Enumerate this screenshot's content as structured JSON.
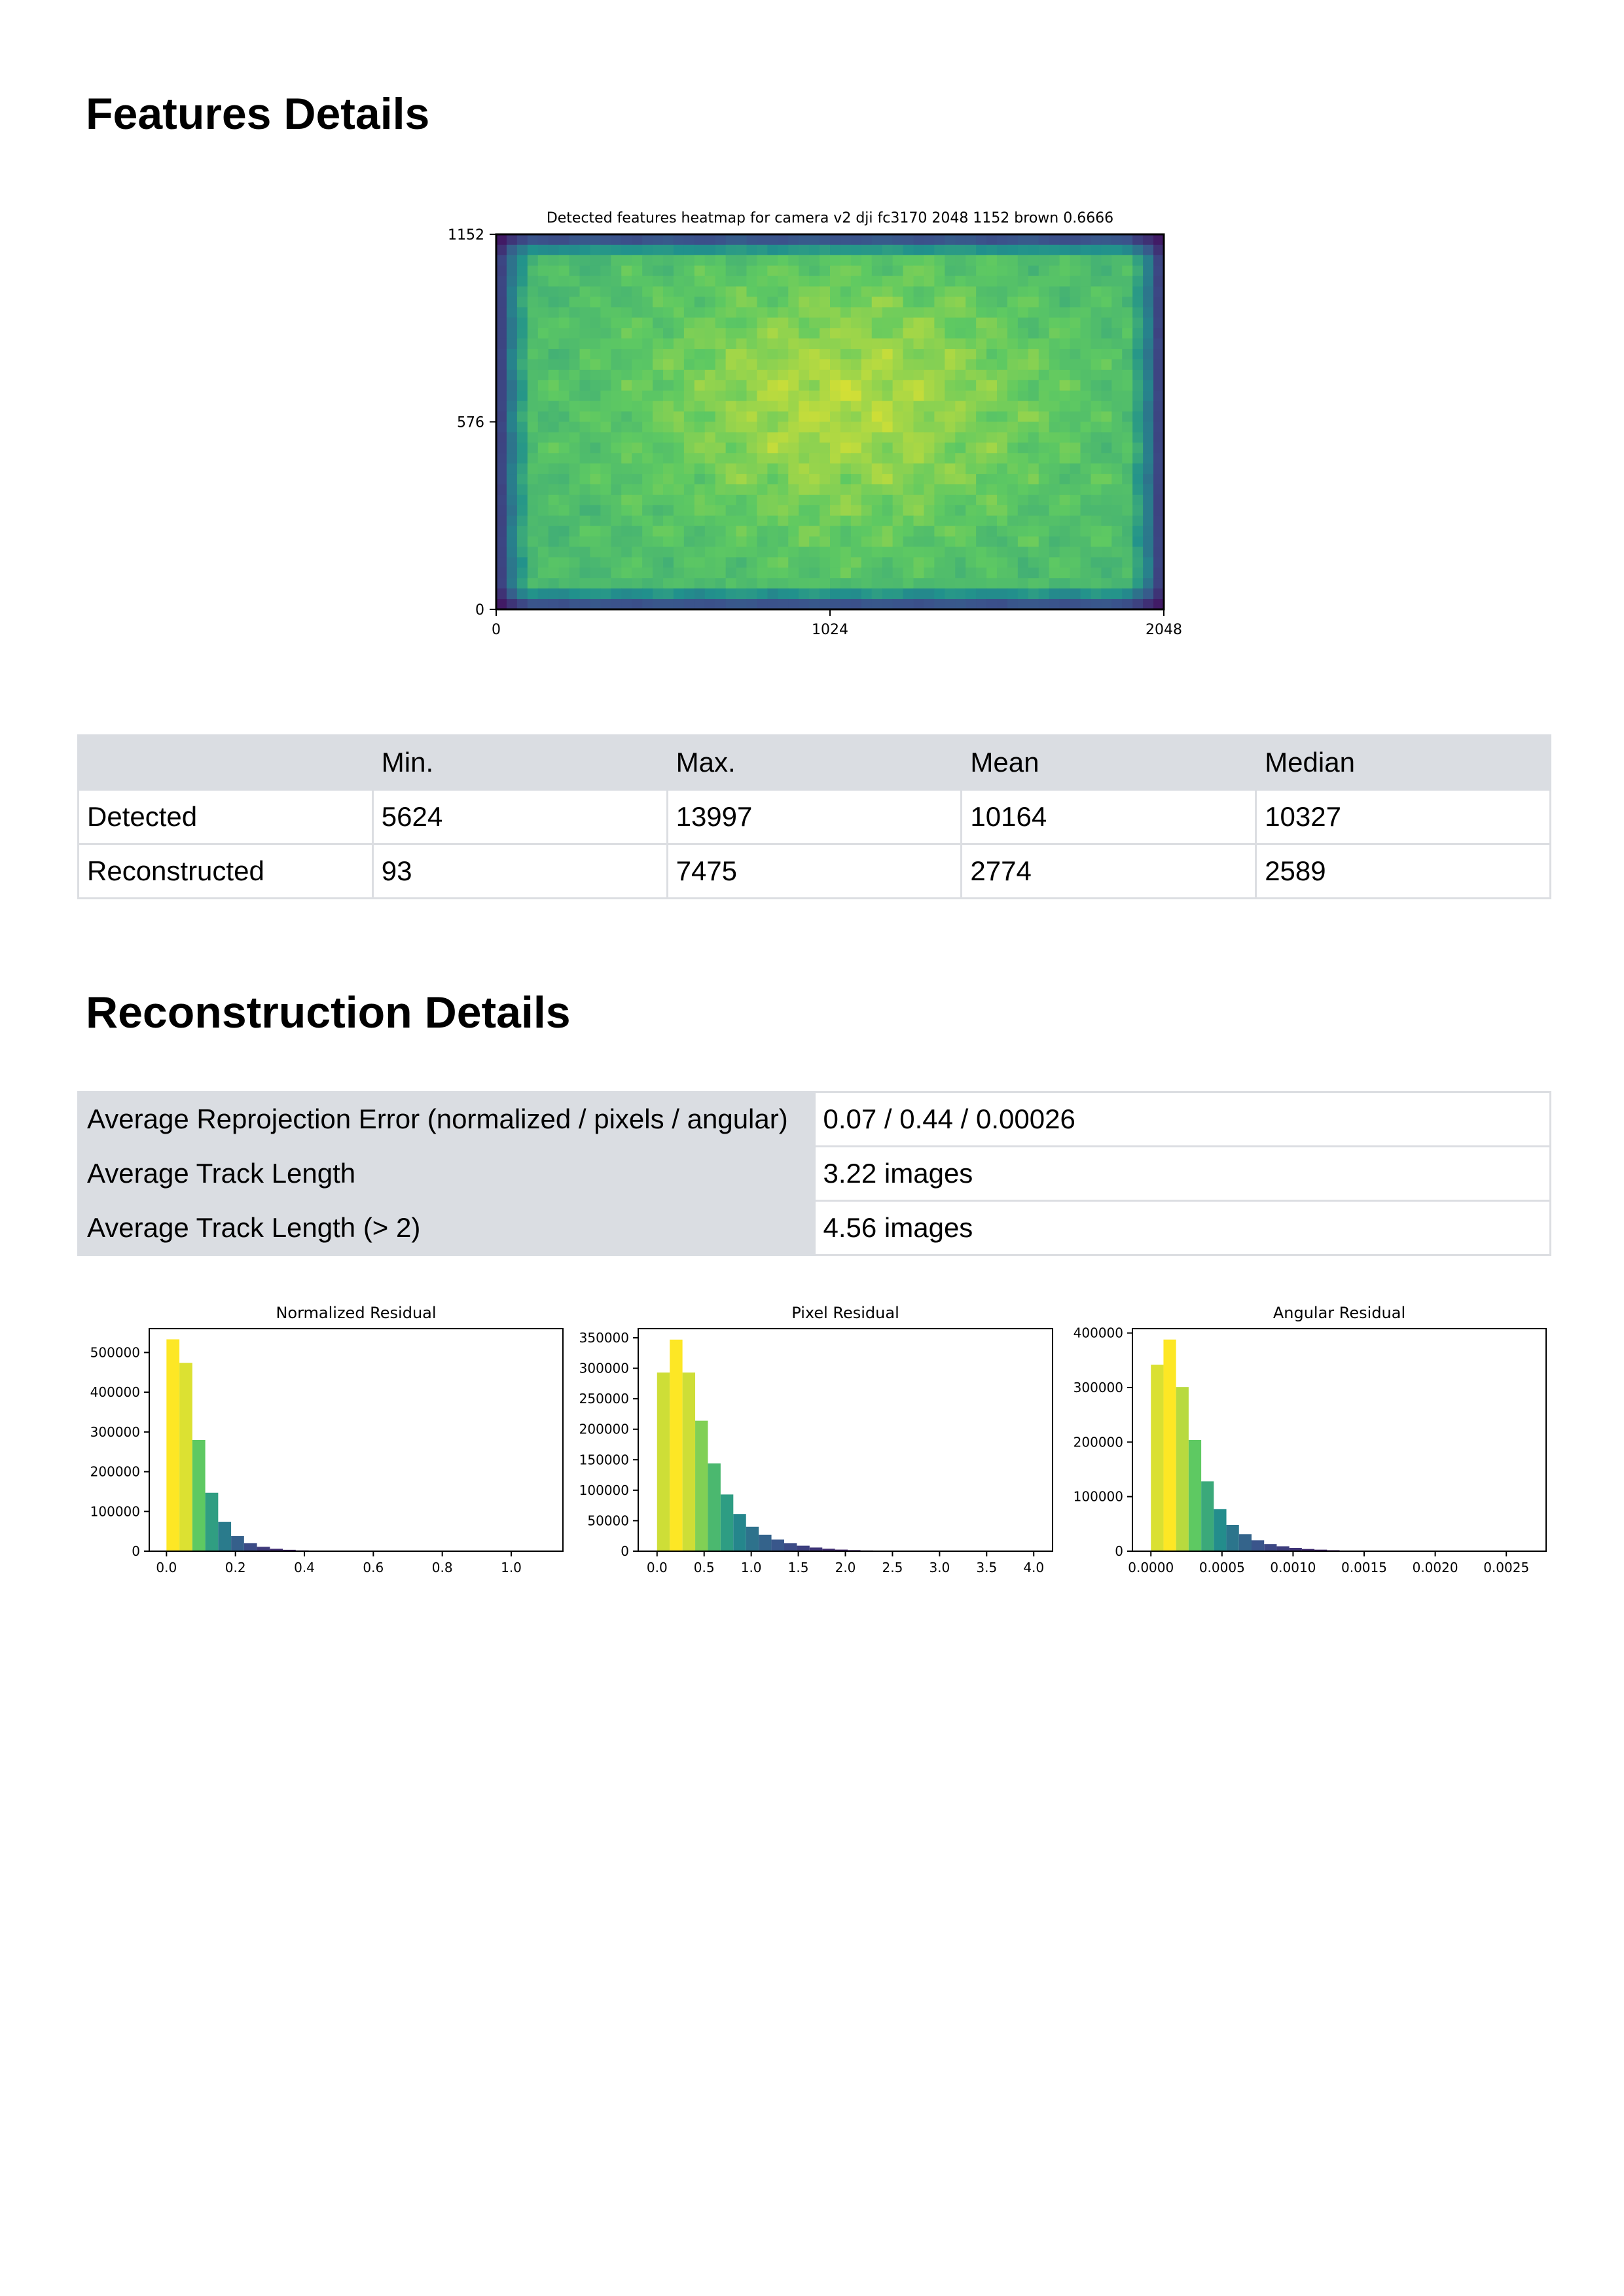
{
  "features_section": {
    "title": "Features Details",
    "table": {
      "headers": [
        "",
        "Min.",
        "Max.",
        "Mean",
        "Median"
      ],
      "rows": [
        [
          "Detected",
          "5624",
          "13997",
          "10164",
          "10327"
        ],
        [
          "Reconstructed",
          "93",
          "7475",
          "2774",
          "2589"
        ]
      ]
    }
  },
  "reconstruction_section": {
    "title": "Reconstruction Details",
    "table": {
      "rows": [
        [
          "Average Reprojection Error (normalized / pixels / angular)",
          "0.07 / 0.44 / 0.00026"
        ],
        [
          "Average Track Length",
          "3.22 images"
        ],
        [
          "Average Track Length (> 2)",
          "4.56 images"
        ]
      ]
    }
  },
  "chart_data": [
    {
      "type": "heatmap",
      "title": "Detected features heatmap for camera v2 dji fc3170 2048 1152 brown 0.6666",
      "xlim": [
        0,
        2048
      ],
      "ylim": [
        0,
        1152
      ],
      "xticks": [
        "0",
        "1024",
        "2048"
      ],
      "yticks": [
        "0",
        "576",
        "1152"
      ],
      "colormap": "viridis"
    },
    {
      "type": "bar",
      "title": "Normalized Residual",
      "x_start": 0.0,
      "bin_width": 0.0375,
      "values": [
        533000,
        474000,
        280000,
        147000,
        74000,
        38000,
        20000,
        11000,
        6000,
        3500,
        2000,
        1200,
        700,
        400,
        300,
        200,
        150,
        100,
        80,
        60,
        50,
        40,
        30,
        20,
        15,
        10,
        8,
        5,
        3,
        2
      ],
      "xlim": [
        -0.05,
        1.15
      ],
      "ylim": [
        0,
        560000
      ],
      "xticks": [
        "0.0",
        "0.2",
        "0.4",
        "0.6",
        "0.8",
        "1.0"
      ],
      "yticks": [
        "0",
        "100000",
        "200000",
        "300000",
        "400000",
        "500000"
      ]
    },
    {
      "type": "bar",
      "title": "Pixel Residual",
      "x_start": 0.0,
      "bin_width": 0.135,
      "values": [
        293000,
        347000,
        293000,
        214000,
        144000,
        93000,
        61000,
        40000,
        27000,
        19000,
        13000,
        9000,
        6000,
        4000,
        2600,
        1800,
        1200,
        800,
        500,
        300,
        200,
        150,
        100,
        80,
        60,
        40,
        30,
        20,
        10,
        5
      ],
      "xlim": [
        -0.2,
        4.2
      ],
      "ylim": [
        0,
        365000
      ],
      "xticks": [
        "0.0",
        "0.5",
        "1.0",
        "1.5",
        "2.0",
        "2.5",
        "3.0",
        "3.5",
        "4.0"
      ],
      "yticks": [
        "0",
        "50000",
        "100000",
        "150000",
        "200000",
        "250000",
        "300000",
        "350000"
      ]
    },
    {
      "type": "bar",
      "title": "Angular Residual",
      "x_start": 0.0,
      "bin_width": 8.85e-05,
      "values": [
        342000,
        388000,
        301000,
        204000,
        128000,
        77000,
        48000,
        31000,
        20000,
        13000,
        9000,
        6000,
        4000,
        2800,
        1800,
        1200,
        800,
        500,
        300,
        200,
        150,
        100,
        70,
        50,
        35,
        25,
        15,
        10,
        5,
        3
      ],
      "xlim": [
        -0.00013,
        0.00278
      ],
      "ylim": [
        0,
        408000
      ],
      "xticks": [
        "0.0000",
        "0.0005",
        "0.0010",
        "0.0015",
        "0.0020",
        "0.0025"
      ],
      "yticks": [
        "0",
        "100000",
        "200000",
        "300000",
        "400000"
      ]
    }
  ]
}
